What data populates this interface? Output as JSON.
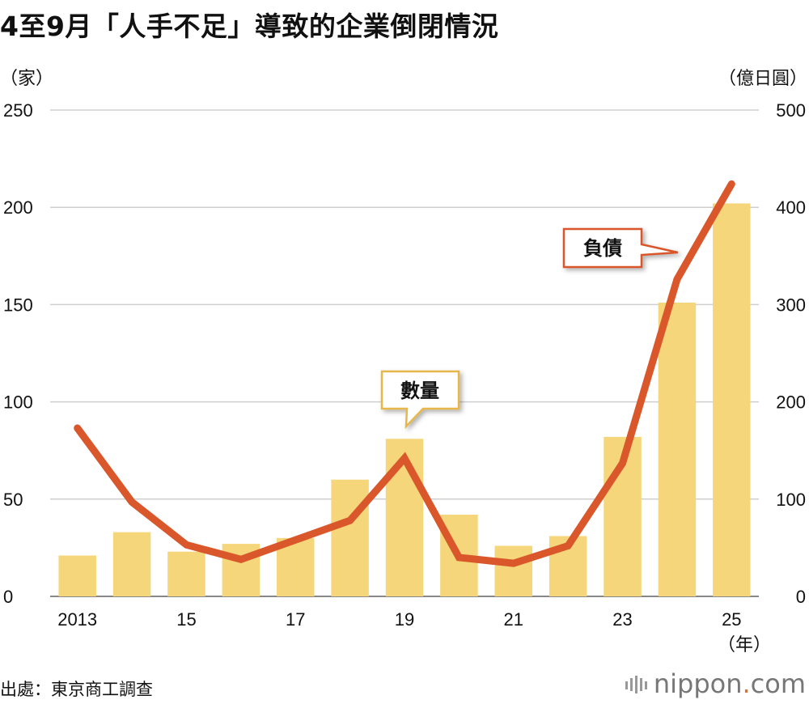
{
  "title": "4至9月「人手不足」導致的企業倒閉情況",
  "source": "出處：東京商工調查",
  "brand": {
    "name": "nippon",
    "dot": ".",
    "tld": "com"
  },
  "chart_data": {
    "type": "bar+line",
    "x": [
      "2013",
      "14",
      "15",
      "16",
      "17",
      "18",
      "19",
      "20",
      "21",
      "22",
      "23",
      "24",
      "25"
    ],
    "x_tick_labels": [
      "2013",
      "",
      "15",
      "",
      "17",
      "",
      "19",
      "",
      "21",
      "",
      "23",
      "",
      "25"
    ],
    "xlabel": "（年）",
    "y_left_label": "（家）",
    "y_right_label": "（億日圓）",
    "y_left_ticks": [
      0,
      50,
      100,
      150,
      200,
      250
    ],
    "y_right_ticks": [
      0,
      100,
      200,
      300,
      400,
      500
    ],
    "ylim_left": [
      0,
      250
    ],
    "ylim_right": [
      0,
      500
    ],
    "grid": true,
    "series": [
      {
        "name": "數量",
        "type": "bar",
        "axis": "left",
        "color": "#f5d67a",
        "values": [
          21,
          33,
          23,
          27,
          30,
          60,
          81,
          42,
          26,
          31,
          82,
          151,
          202
        ]
      },
      {
        "name": "負債",
        "type": "line",
        "axis": "right",
        "color": "#d9572b",
        "values": [
          173,
          97,
          53,
          38,
          58,
          78,
          142,
          40,
          34,
          52,
          137,
          326,
          424
        ]
      }
    ]
  }
}
